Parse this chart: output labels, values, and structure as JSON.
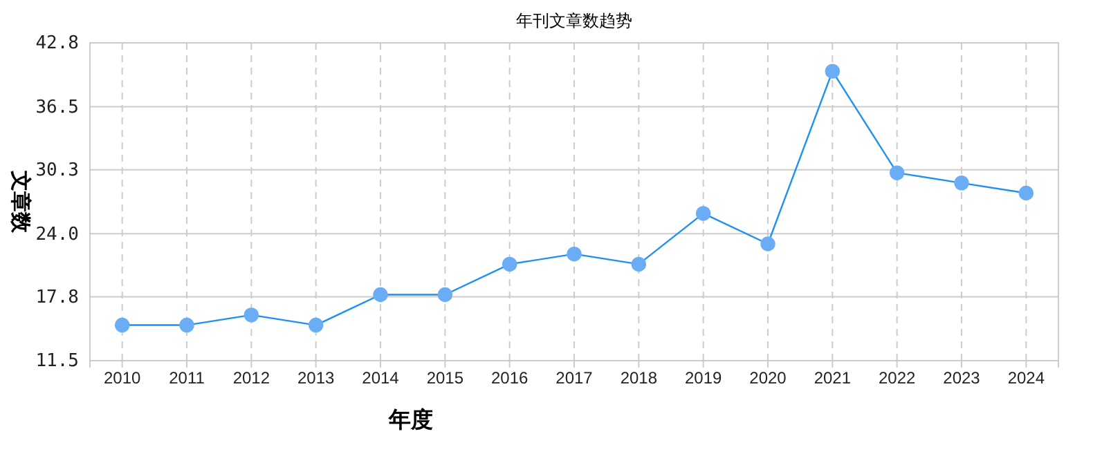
{
  "chart_data": {
    "type": "line",
    "title": "年刊文章数趋势",
    "xlabel": "年度",
    "ylabel": "文章数",
    "categories": [
      "2010",
      "2011",
      "2012",
      "2013",
      "2014",
      "2015",
      "2016",
      "2017",
      "2018",
      "2019",
      "2020",
      "2021",
      "2022",
      "2023",
      "2024"
    ],
    "series": [
      {
        "color": "#1e90f0",
        "values": [
          15,
          15,
          16,
          15,
          18,
          18,
          21,
          22,
          21,
          26,
          23,
          40,
          30,
          29,
          28
        ]
      }
    ],
    "ylim": [
      11.5,
      42.8
    ],
    "yticks": [
      11.5,
      17.8,
      {
        "value": 24,
        "label": "24.0"
      },
      30.3,
      36.5,
      42.8
    ],
    "grid": true,
    "marker": "circle",
    "line_style": "solid"
  }
}
